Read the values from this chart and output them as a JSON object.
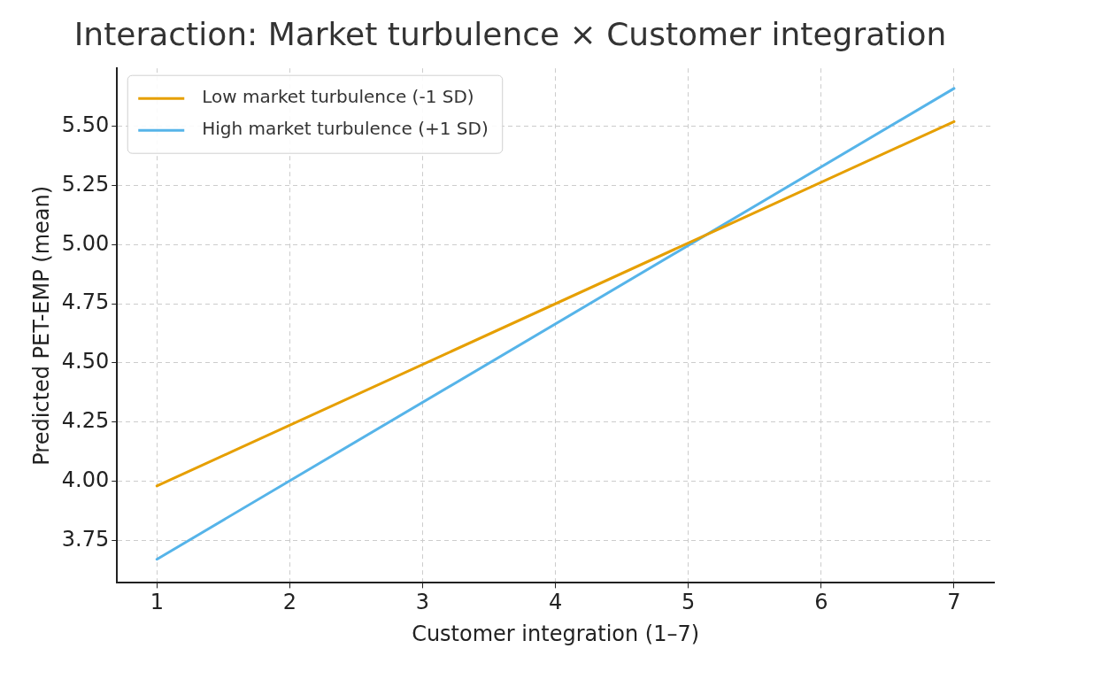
{
  "chart_data": {
    "type": "line",
    "title": "Interaction: Market turbulence × Customer integration",
    "xlabel": "Customer integration (1–7)",
    "ylabel": "Predicted PET-EMP (mean)",
    "x": [
      1,
      7
    ],
    "series": [
      {
        "name": "Low market turbulence (-1 SD)",
        "color": "#e69f00",
        "values": [
          3.98,
          5.52
        ]
      },
      {
        "name": "High market turbulence (+1 SD)",
        "color": "#56b4e9",
        "values": [
          3.67,
          5.66
        ]
      }
    ],
    "xlim": [
      0.7,
      7.3
    ],
    "xticks": [
      1,
      2,
      3,
      4,
      5,
      6,
      7
    ],
    "ylim": [
      3.57,
      5.745
    ],
    "yticks": [
      {
        "value": 3.75,
        "label": "3.75"
      },
      {
        "value": 4,
        "label": "4.00"
      },
      {
        "value": 4.25,
        "label": "4.25"
      },
      {
        "value": 4.5,
        "label": "4.50"
      },
      {
        "value": 4.75,
        "label": "4.75"
      },
      {
        "value": 5,
        "label": "5.00"
      },
      {
        "value": 5.25,
        "label": "5.25"
      },
      {
        "value": 5.5,
        "label": "5.50"
      }
    ],
    "grid": true,
    "legend": "top left",
    "line_style": "solid",
    "marker": "none"
  }
}
